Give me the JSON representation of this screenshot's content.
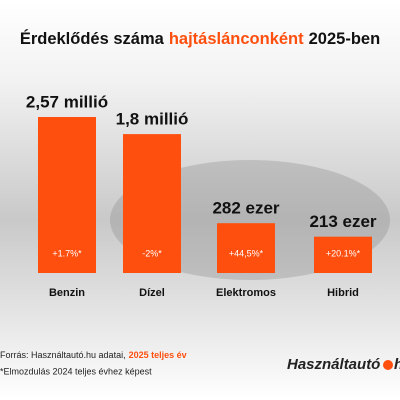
{
  "chart_data": {
    "type": "bar",
    "title": [
      "Érdeklődés száma",
      "hajtáslánconként",
      "2025-ben"
    ],
    "categories": [
      "Benzin",
      "Dízel",
      "Elektromos",
      "Hibrid"
    ],
    "values": [
      2570000,
      1800000,
      282000,
      213000
    ],
    "value_labels": [
      "2,57 millió",
      "1,8 millió",
      "282 ezer",
      "213 ezer"
    ],
    "changes": [
      1.7,
      -2,
      44.5,
      20.1
    ],
    "change_labels": [
      "+1.7%*",
      "-2%*",
      "+44,5%*",
      "+20.1%*"
    ],
    "color": "#ff4f0f",
    "log_scale": true,
    "ylim": [
      100000,
      2570000
    ],
    "source": [
      "Forrás: Használtautó.hu adatai,",
      "2025 teljes év"
    ],
    "footnote": "*Elmozdulás 2024 teljes évhez képest",
    "logo": [
      "Használtautó",
      "hu"
    ]
  }
}
